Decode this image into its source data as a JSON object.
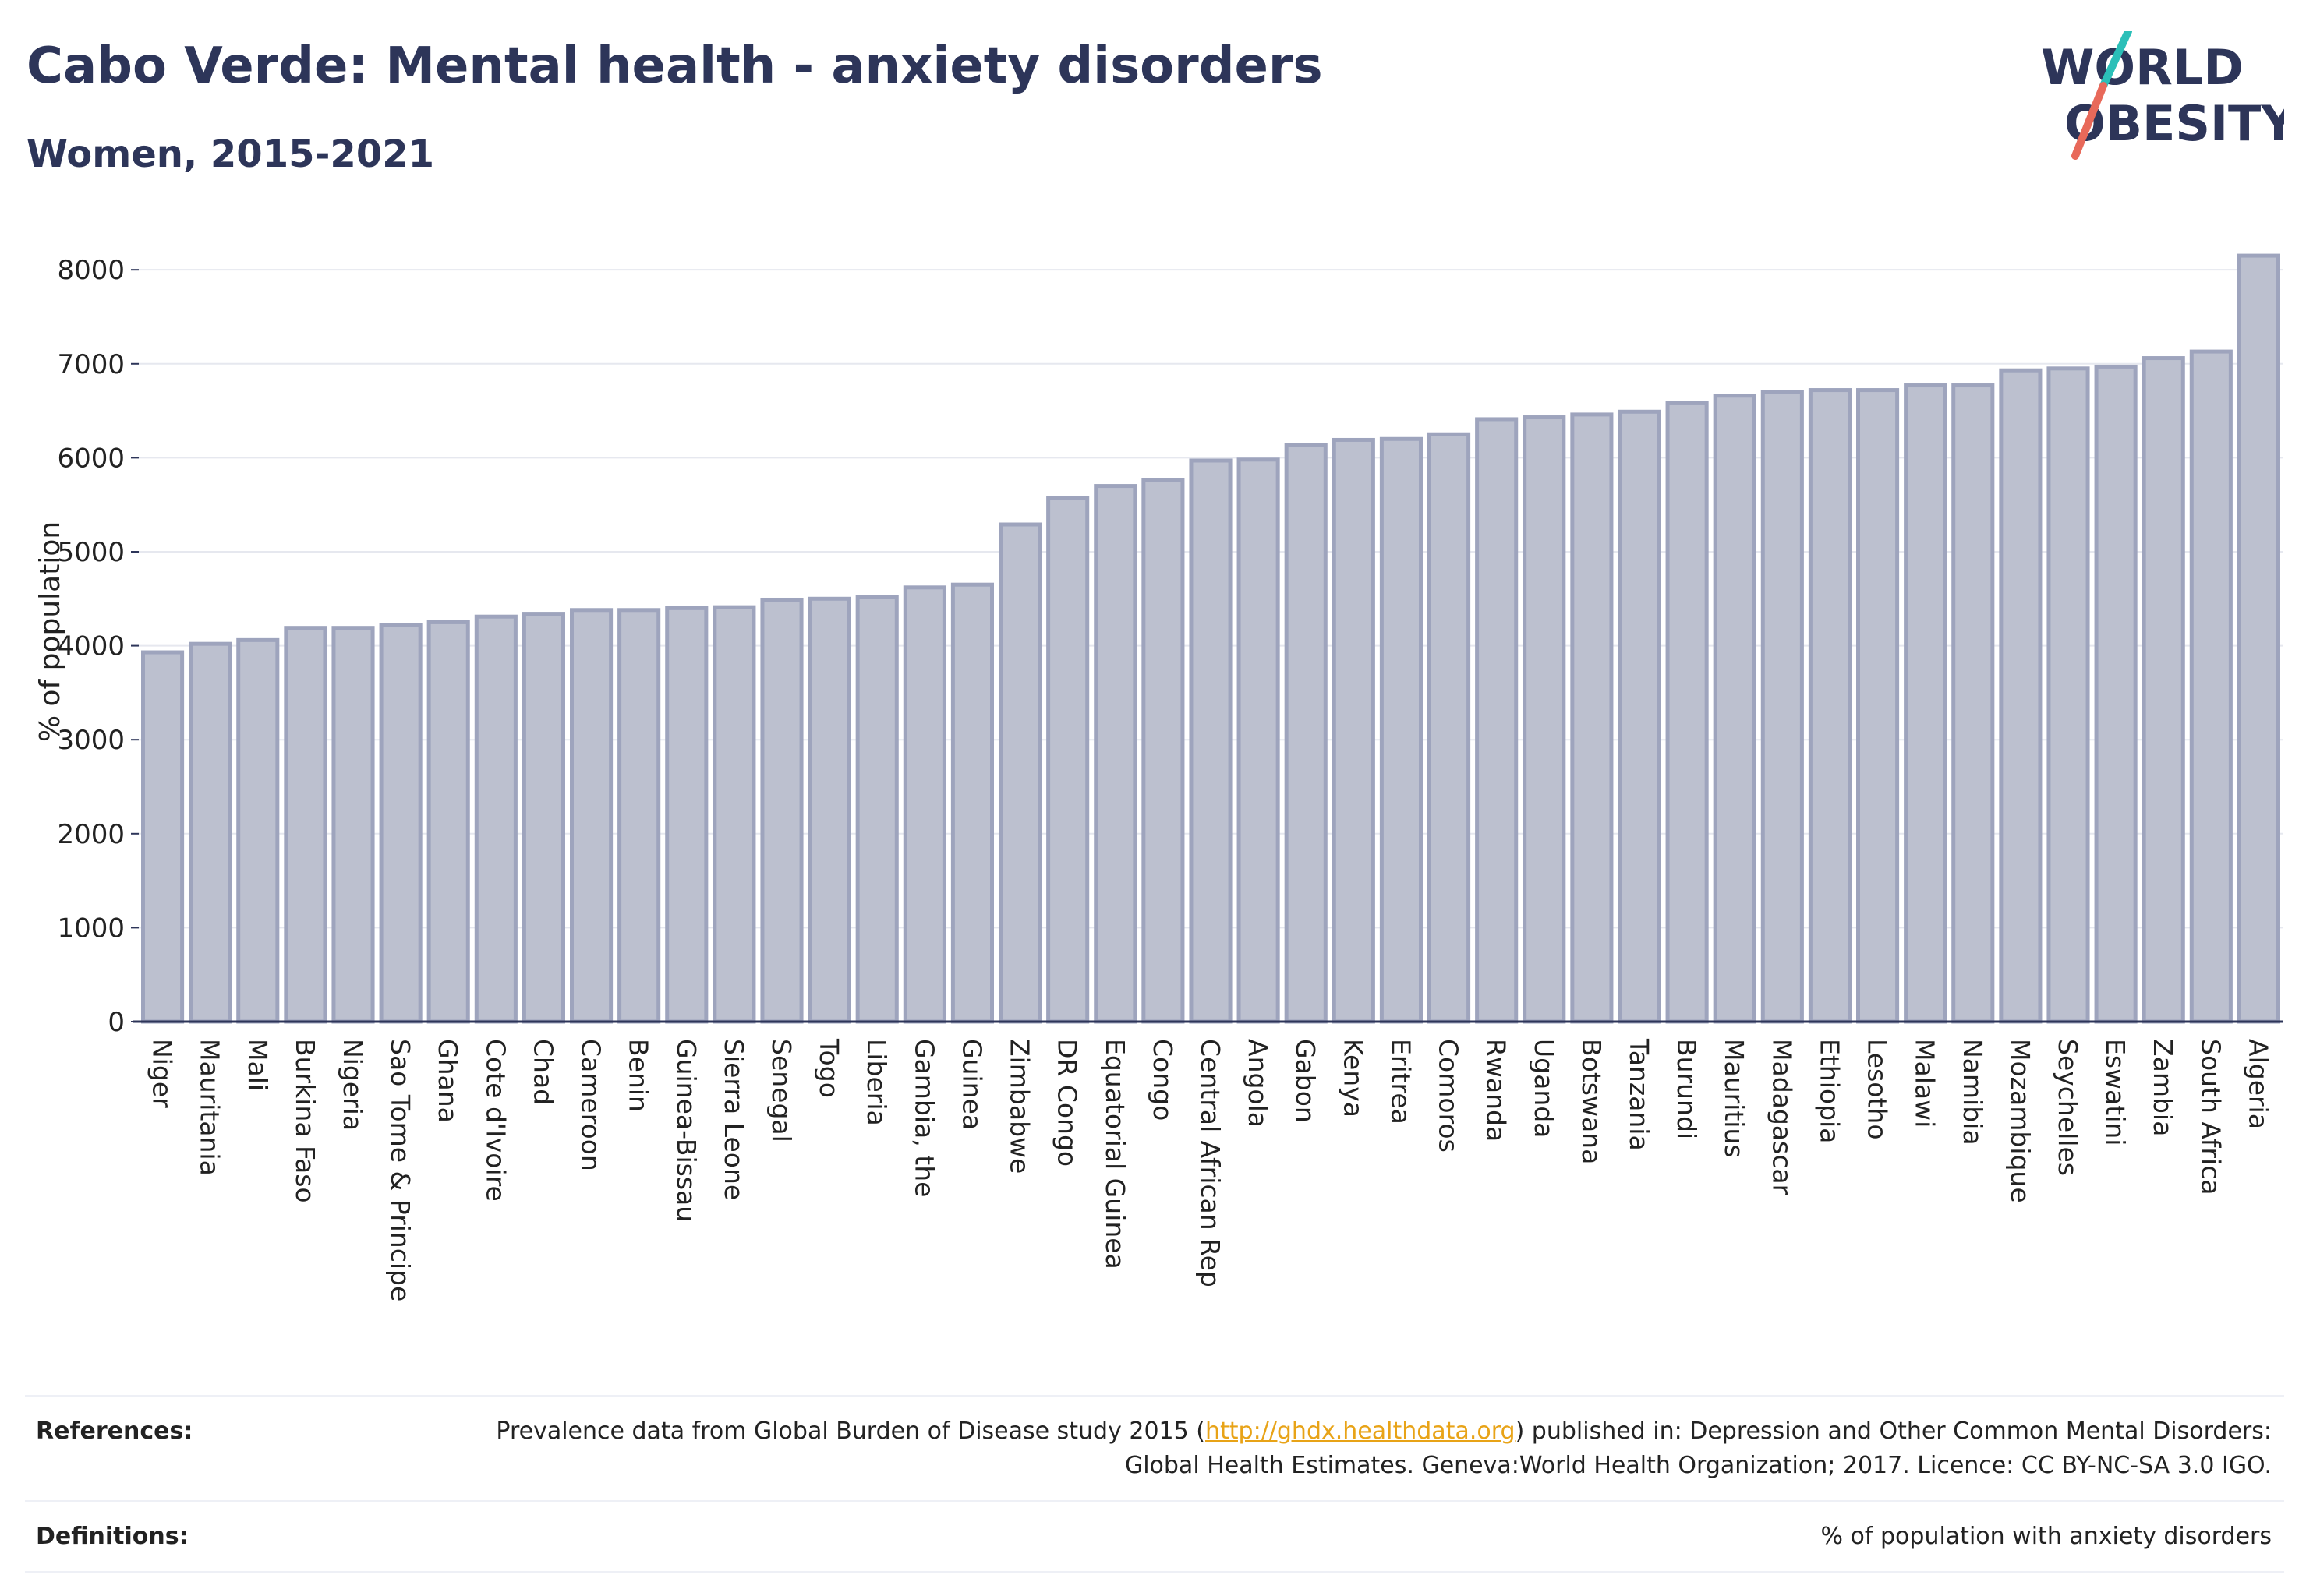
{
  "header": {
    "title": "Cabo Verde: Mental health - anxiety disorders",
    "subtitle": "Women, 2015-2021"
  },
  "logo": {
    "line1": "WORLD",
    "line2": "OBESITY",
    "colors": {
      "text": "#2d3559",
      "slash_top": "#2bbfb8",
      "slash_bottom": "#e8695a"
    }
  },
  "chart_data": {
    "type": "bar",
    "ylabel": "% of population",
    "xlabel": "",
    "ylim": [
      0,
      8300
    ],
    "yticks": [
      0,
      1000,
      2000,
      3000,
      4000,
      5000,
      6000,
      7000,
      8000
    ],
    "grid": true,
    "bar_fill": "#bcc0cf",
    "bar_stroke": "#9ea4bd",
    "categories": [
      "Niger",
      "Mauritania",
      "Mali",
      "Burkina Faso",
      "Nigeria",
      "Sao Tome & Principe",
      "Ghana",
      "Cote d'Ivoire",
      "Chad",
      "Cameroon",
      "Benin",
      "Guinea-Bissau",
      "Sierra Leone",
      "Senegal",
      "Togo",
      "Liberia",
      "Gambia, the",
      "Guinea",
      "Zimbabwe",
      "DR Congo",
      "Equatorial Guinea",
      "Congo",
      "Central African Rep",
      "Angola",
      "Gabon",
      "Kenya",
      "Eritrea",
      "Comoros",
      "Rwanda",
      "Uganda",
      "Botswana",
      "Tanzania",
      "Burundi",
      "Mauritius",
      "Madagascar",
      "Ethiopia",
      "Lesotho",
      "Malawi",
      "Namibia",
      "Mozambique",
      "Seychelles",
      "Eswatini",
      "Zambia",
      "South Africa",
      "Algeria"
    ],
    "values": [
      3930,
      4020,
      4060,
      4190,
      4190,
      4220,
      4250,
      4310,
      4340,
      4380,
      4380,
      4400,
      4410,
      4490,
      4500,
      4520,
      4620,
      4650,
      5290,
      5570,
      5700,
      5760,
      5970,
      5980,
      6140,
      6190,
      6200,
      6250,
      6410,
      6430,
      6460,
      6490,
      6580,
      6660,
      6700,
      6720,
      6720,
      6770,
      6770,
      6930,
      6950,
      6970,
      7060,
      7130,
      8150
    ]
  },
  "references": {
    "label": "References:",
    "text_before": "Prevalence data from Global Burden of Disease study 2015 (",
    "link": "http://ghdx.healthdata.org",
    "text_after": ") published in: Depression and Other Common Mental Disorders: Global Health Estimates. Geneva:World Health Organization; 2017. Licence: CC BY-NC-SA 3.0 IGO."
  },
  "definitions": {
    "label": "Definitions:",
    "text": "% of population with anxiety disorders"
  }
}
